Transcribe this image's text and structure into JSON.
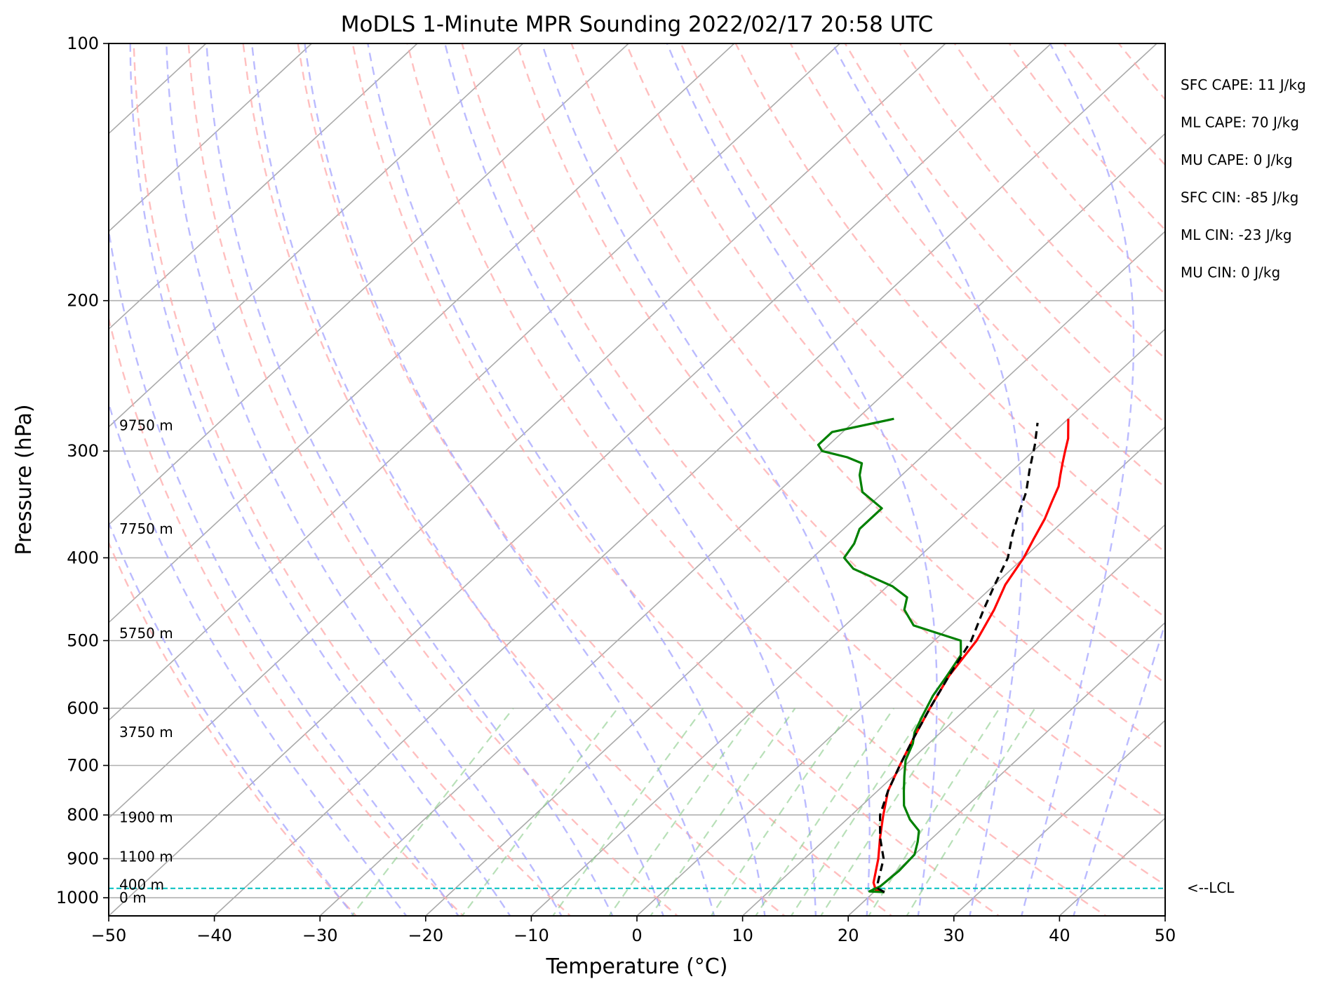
{
  "chart_data": {
    "type": "line",
    "title": "MoDLS 1-Minute MPR Sounding 2022/02/17 20:58 UTC",
    "xlabel": "Temperature (°C)",
    "ylabel": "Pressure (hPa)",
    "xlim": [
      -50,
      50
    ],
    "ylim": [
      1050,
      100
    ],
    "y_scale": "log",
    "grid": true,
    "x_ticks": [
      -50,
      -40,
      -30,
      -20,
      -10,
      0,
      10,
      20,
      30,
      40,
      50
    ],
    "x_tick_labels": [
      "−50",
      "−40",
      "−30",
      "−20",
      "−10",
      "0",
      "10",
      "20",
      "30",
      "40",
      "50"
    ],
    "y_ticks": [
      100,
      200,
      300,
      400,
      500,
      600,
      700,
      800,
      900,
      1000
    ],
    "y_tick_labels": [
      "100",
      "200",
      "300",
      "400",
      "500",
      "600",
      "700",
      "800",
      "900",
      "1000"
    ],
    "height_labels": [
      {
        "pressure": 280,
        "text": "9750 m"
      },
      {
        "pressure": 370,
        "text": "7750 m"
      },
      {
        "pressure": 490,
        "text": "5750 m"
      },
      {
        "pressure": 640,
        "text": "3750 m"
      },
      {
        "pressure": 805,
        "text": "1900 m"
      },
      {
        "pressure": 895,
        "text": "1100 m"
      },
      {
        "pressure": 965,
        "text": "400 m"
      },
      {
        "pressure": 1000,
        "text": "0 m"
      }
    ],
    "stats": [
      "SFC CAPE: 11 J/kg",
      "ML CAPE: 70 J/kg",
      "MU CAPE: 0 J/kg",
      "SFC CIN: -85 J/kg",
      "ML CIN: -23 J/kg",
      "MU CIN: 0 J/kg"
    ],
    "lcl": {
      "pressure": 975,
      "label": "<--LCL",
      "color": "#00bfbf"
    },
    "series": [
      {
        "kind": "temperature",
        "color": "#ff0000",
        "points": [
          [
            21,
            985
          ],
          [
            20,
            980
          ],
          [
            19,
            960
          ],
          [
            17,
            900
          ],
          [
            15,
            850
          ],
          [
            13,
            800
          ],
          [
            11,
            750
          ],
          [
            9.5,
            700
          ],
          [
            8,
            650
          ],
          [
            6.5,
            600
          ],
          [
            5,
            550
          ],
          [
            4,
            500
          ],
          [
            2.5,
            460
          ],
          [
            1,
            430
          ],
          [
            0,
            400
          ],
          [
            -1,
            380
          ],
          [
            -2,
            360
          ],
          [
            -3,
            345
          ],
          [
            -4,
            330
          ],
          [
            -5,
            320
          ],
          [
            -6,
            310
          ],
          [
            -7,
            300
          ],
          [
            -8,
            290
          ],
          [
            -10,
            275
          ]
        ]
      },
      {
        "kind": "dewpoint",
        "color": "#008000",
        "points": [
          [
            21,
            985
          ],
          [
            19.5,
            983
          ],
          [
            20,
            970
          ],
          [
            20.2,
            930
          ],
          [
            20,
            890
          ],
          [
            19,
            860
          ],
          [
            18,
            835
          ],
          [
            16,
            810
          ],
          [
            14,
            780
          ],
          [
            12.5,
            750
          ],
          [
            11,
            720
          ],
          [
            9.5,
            690
          ],
          [
            8.5,
            660
          ],
          [
            7.5,
            640
          ],
          [
            6.5,
            610
          ],
          [
            5.5,
            580
          ],
          [
            4.8,
            550
          ],
          [
            4,
            520
          ],
          [
            2.5,
            500
          ],
          [
            -3.5,
            480
          ],
          [
            -6,
            460
          ],
          [
            -7,
            445
          ],
          [
            -9.5,
            432
          ],
          [
            -15,
            412
          ],
          [
            -17,
            400
          ],
          [
            -17.5,
            385
          ],
          [
            -18.5,
            370
          ],
          [
            -18.5,
            360
          ],
          [
            -18.5,
            350
          ],
          [
            -22,
            335
          ],
          [
            -24,
            320
          ],
          [
            -25,
            310
          ],
          [
            -27,
            305
          ],
          [
            -30,
            300
          ],
          [
            -31,
            295
          ],
          [
            -31,
            285
          ],
          [
            -26.5,
            275
          ]
        ]
      },
      {
        "kind": "parcel",
        "color": "#000000",
        "points": [
          [
            21,
            985
          ],
          [
            20,
            975
          ],
          [
            19.4,
            960
          ],
          [
            17.5,
            900
          ],
          [
            15,
            850
          ],
          [
            12.7,
            800
          ],
          [
            11,
            750
          ],
          [
            9.5,
            700
          ],
          [
            8,
            650
          ],
          [
            6.5,
            600
          ],
          [
            5,
            550
          ],
          [
            3.5,
            500
          ],
          [
            1.5,
            460
          ],
          [
            0,
            430
          ],
          [
            -1.5,
            400
          ],
          [
            -3.5,
            375
          ],
          [
            -5,
            355
          ],
          [
            -6.5,
            335
          ],
          [
            -8.5,
            315
          ],
          [
            -10.5,
            295
          ],
          [
            -12.5,
            278
          ]
        ]
      }
    ]
  }
}
